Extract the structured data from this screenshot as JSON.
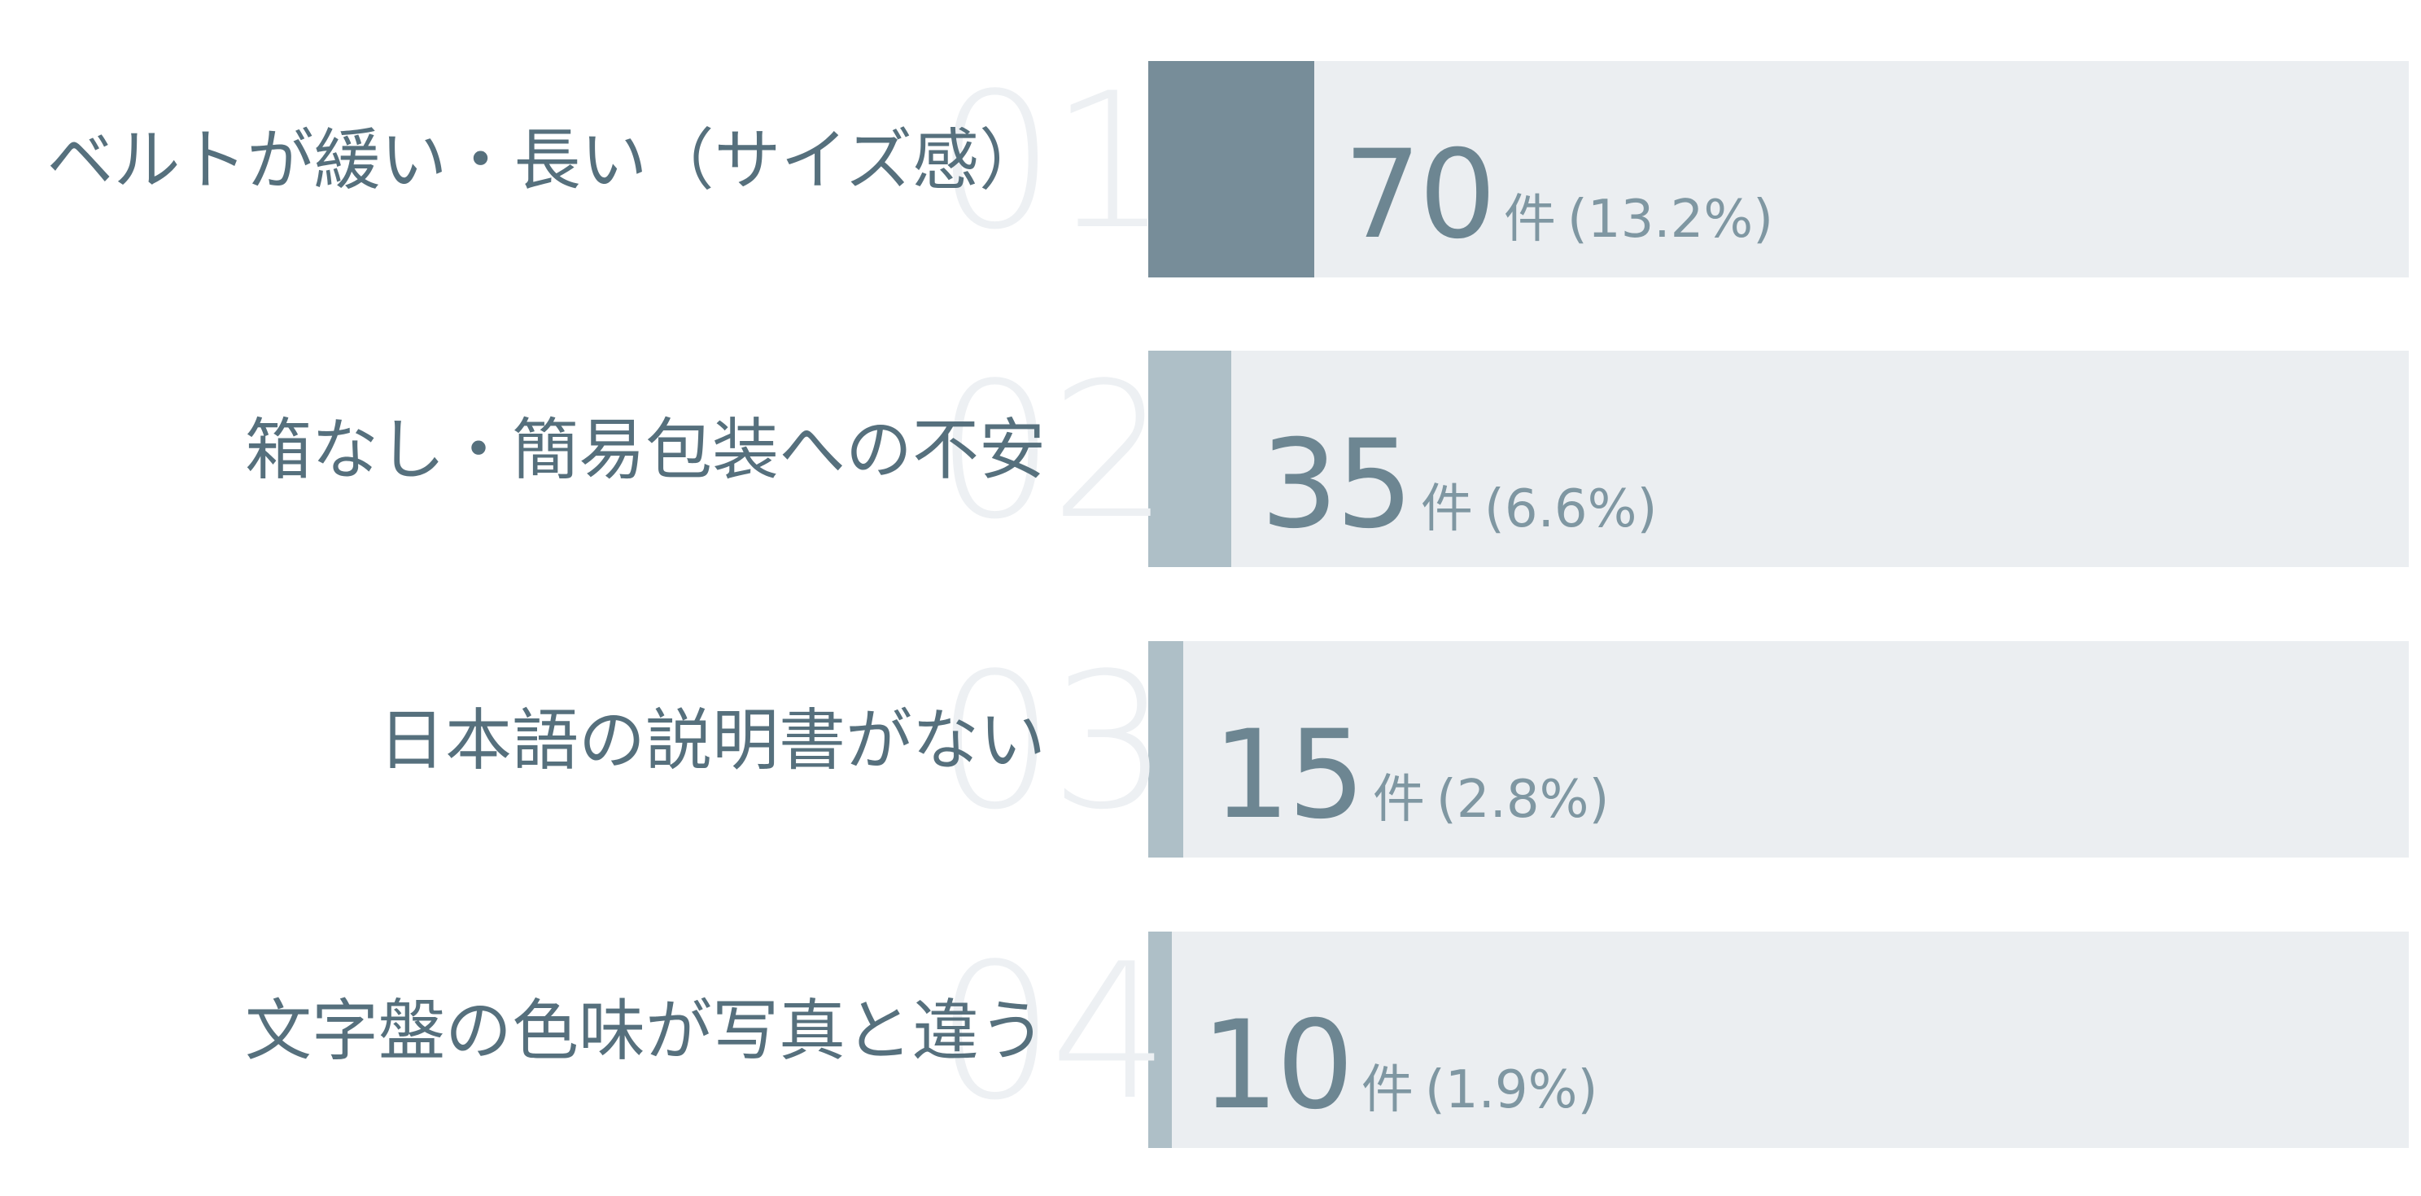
{
  "colors": {
    "top_bar": "#778d99",
    "bar": "#aebfc7",
    "track": "#ebeef1",
    "label": "#56707d",
    "value": "#6d8692",
    "rank": "#edf0f3"
  },
  "chart_data": {
    "type": "bar",
    "orientation": "horizontal",
    "title": "",
    "xlabel": "",
    "ylabel": "",
    "unit": "件",
    "categories": [
      "ベルトが緩い・長い（サイズ感）",
      "箱なし・簡易包装への不安",
      "日本語の説明書がない",
      "文字盤の色味が写真と違う"
    ],
    "ranks": [
      "01",
      "02",
      "03",
      "04"
    ],
    "values": [
      70,
      35,
      15,
      10
    ],
    "percent_labels": [
      "(13.2%)",
      "(6.6%)",
      "(2.8%)",
      "(1.9%)"
    ],
    "percent_values": [
      13.2,
      6.6,
      2.8,
      1.9
    ],
    "xlim": [
      0,
      100
    ],
    "grid": false,
    "legend": "none"
  }
}
